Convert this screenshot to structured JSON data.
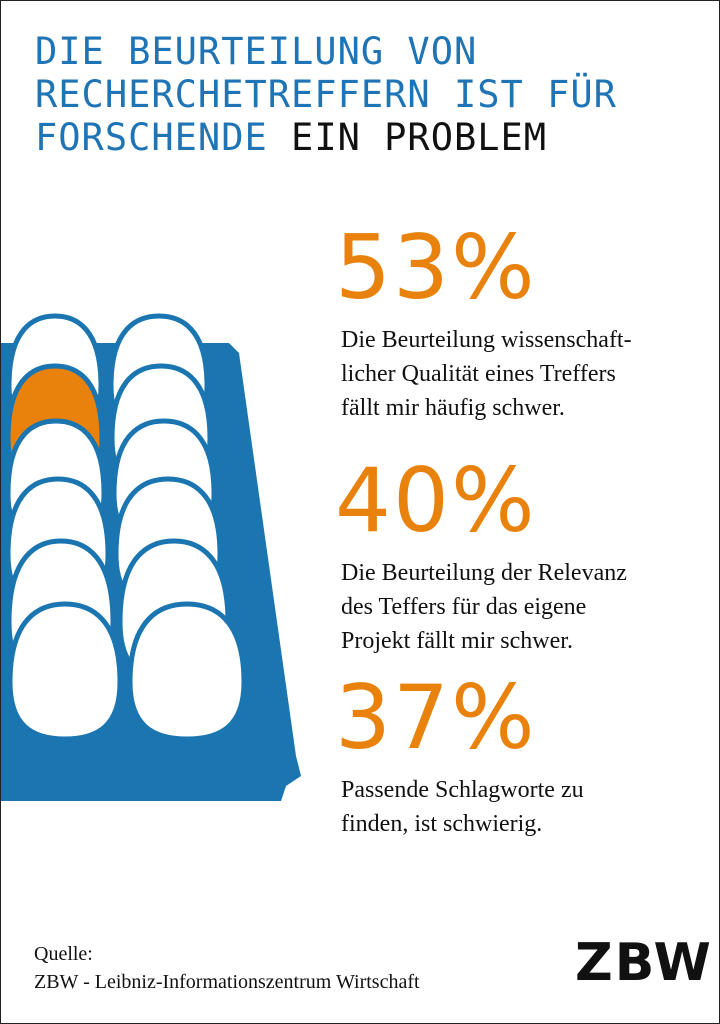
{
  "title": {
    "blue_lines": [
      "DIE BEURTEILUNG VON",
      "RECHERCHETREFFERN IST FÜR"
    ],
    "last_line_blue": "FORSCHENDE",
    "last_line_dark": "EIN PROBLEM"
  },
  "stats": [
    {
      "figure": "53%",
      "lines": [
        "Die Beurteilung wissenschaft-",
        "licher Qualität eines Treffers",
        "fällt mir häufig schwer."
      ]
    },
    {
      "figure": "40%",
      "lines": [
        "Die Beurteilung der Relevanz",
        "des Teffers für das eigene",
        "Projekt fällt mir schwer."
      ]
    },
    {
      "figure": "37%",
      "lines": [
        "Passende Schlagworte zu",
        "finden, ist schwierig."
      ]
    }
  ],
  "source": {
    "label": "Quelle:",
    "text": "ZBW - Leibniz-Informationszentrum Wirtschaft"
  },
  "logo": "ZBW"
}
